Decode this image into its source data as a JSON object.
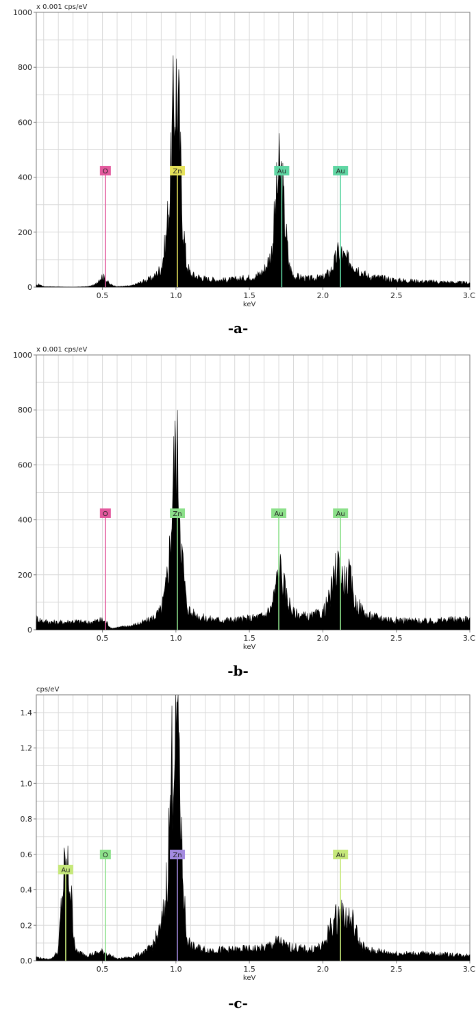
{
  "chart_data": [
    {
      "type": "area",
      "caption": "-a-",
      "y_unit_label": "x 0.001 cps/eV",
      "xlabel": "keV",
      "xlim": [
        0.05,
        3.0
      ],
      "ylim": [
        0,
        1000
      ],
      "x_tick_labels": [
        "0.5",
        "1.0",
        "1.5",
        "2.0",
        "2.5",
        "3.C"
      ],
      "x_ticks": [
        0.5,
        1.0,
        1.5,
        2.0,
        2.5,
        3.0
      ],
      "y_tick_labels": [
        "0",
        "200",
        "400",
        "600",
        "800",
        "1000"
      ],
      "y_ticks": [
        0,
        200,
        400,
        600,
        800,
        1000
      ],
      "spectrum": [
        [
          0.05,
          5
        ],
        [
          0.07,
          10
        ],
        [
          0.1,
          2
        ],
        [
          0.3,
          0
        ],
        [
          0.4,
          2
        ],
        [
          0.45,
          8
        ],
        [
          0.48,
          30
        ],
        [
          0.5,
          40
        ],
        [
          0.52,
          30
        ],
        [
          0.55,
          10
        ],
        [
          0.6,
          2
        ],
        [
          0.7,
          5
        ],
        [
          0.75,
          15
        ],
        [
          0.8,
          25
        ],
        [
          0.85,
          35
        ],
        [
          0.9,
          70
        ],
        [
          0.93,
          160
        ],
        [
          0.96,
          350
        ],
        [
          0.98,
          600
        ],
        [
          1.0,
          740
        ],
        [
          1.02,
          620
        ],
        [
          1.04,
          300
        ],
        [
          1.07,
          90
        ],
        [
          1.1,
          45
        ],
        [
          1.2,
          30
        ],
        [
          1.3,
          25
        ],
        [
          1.4,
          28
        ],
        [
          1.5,
          35
        ],
        [
          1.55,
          40
        ],
        [
          1.6,
          60
        ],
        [
          1.65,
          120
        ],
        [
          1.68,
          300
        ],
        [
          1.7,
          410
        ],
        [
          1.72,
          390
        ],
        [
          1.74,
          250
        ],
        [
          1.77,
          80
        ],
        [
          1.8,
          40
        ],
        [
          1.9,
          30
        ],
        [
          2.0,
          35
        ],
        [
          2.05,
          55
        ],
        [
          2.08,
          90
        ],
        [
          2.1,
          120
        ],
        [
          2.12,
          130
        ],
        [
          2.15,
          100
        ],
        [
          2.2,
          90
        ],
        [
          2.25,
          60
        ],
        [
          2.3,
          40
        ],
        [
          2.5,
          25
        ],
        [
          2.7,
          20
        ],
        [
          3.0,
          15
        ]
      ],
      "markers": [
        {
          "element": "O",
          "energy": 0.52,
          "color": "#e35a9e"
        },
        {
          "element": "Zn",
          "energy": 1.01,
          "color": "#e6e25a"
        },
        {
          "element": "Au",
          "energy": 1.72,
          "color": "#5fd6a3"
        },
        {
          "element": "Au",
          "energy": 2.12,
          "color": "#5fd6a3"
        }
      ]
    },
    {
      "type": "area",
      "caption": "-b-",
      "y_unit_label": "x 0.001 cps/eV",
      "xlabel": "keV",
      "xlim": [
        0.05,
        3.0
      ],
      "ylim": [
        0,
        1000
      ],
      "x_tick_labels": [
        "0.5",
        "1.0",
        "1.5",
        "2.0",
        "2.5",
        "3.C"
      ],
      "x_ticks": [
        0.5,
        1.0,
        1.5,
        2.0,
        2.5,
        3.0
      ],
      "y_tick_labels": [
        "0",
        "200",
        "400",
        "600",
        "800",
        "1000"
      ],
      "y_ticks": [
        0,
        200,
        400,
        600,
        800,
        1000
      ],
      "spectrum": [
        [
          0.05,
          40
        ],
        [
          0.1,
          30
        ],
        [
          0.2,
          25
        ],
        [
          0.3,
          30
        ],
        [
          0.4,
          25
        ],
        [
          0.45,
          30
        ],
        [
          0.5,
          35
        ],
        [
          0.53,
          25
        ],
        [
          0.56,
          5
        ],
        [
          0.6,
          8
        ],
        [
          0.7,
          15
        ],
        [
          0.8,
          30
        ],
        [
          0.85,
          45
        ],
        [
          0.9,
          70
        ],
        [
          0.93,
          140
        ],
        [
          0.96,
          300
        ],
        [
          0.98,
          520
        ],
        [
          1.0,
          650
        ],
        [
          1.02,
          560
        ],
        [
          1.04,
          280
        ],
        [
          1.07,
          100
        ],
        [
          1.1,
          60
        ],
        [
          1.2,
          40
        ],
        [
          1.3,
          35
        ],
        [
          1.4,
          35
        ],
        [
          1.5,
          40
        ],
        [
          1.6,
          50
        ],
        [
          1.65,
          80
        ],
        [
          1.68,
          150
        ],
        [
          1.7,
          230
        ],
        [
          1.72,
          200
        ],
        [
          1.75,
          120
        ],
        [
          1.8,
          60
        ],
        [
          1.9,
          45
        ],
        [
          2.0,
          60
        ],
        [
          2.05,
          120
        ],
        [
          2.08,
          190
        ],
        [
          2.1,
          250
        ],
        [
          2.12,
          200
        ],
        [
          2.15,
          170
        ],
        [
          2.18,
          190
        ],
        [
          2.22,
          100
        ],
        [
          2.3,
          50
        ],
        [
          2.5,
          35
        ],
        [
          2.7,
          30
        ],
        [
          3.0,
          40
        ]
      ],
      "markers": [
        {
          "element": "O",
          "energy": 0.52,
          "color": "#e35a9e"
        },
        {
          "element": "Zn",
          "energy": 1.01,
          "color": "#8ce08a"
        },
        {
          "element": "Au",
          "energy": 1.7,
          "color": "#8ce08a"
        },
        {
          "element": "Au",
          "energy": 2.12,
          "color": "#8ce08a"
        }
      ]
    },
    {
      "type": "area",
      "caption": "-c-",
      "y_unit_label": "cps/eV",
      "xlabel": "keV",
      "xlim": [
        0.05,
        3.0
      ],
      "ylim": [
        0,
        1.5
      ],
      "x_tick_labels": [
        "0.5",
        "1.0",
        "1.5",
        "2.0",
        "2.5",
        "3.C"
      ],
      "x_ticks": [
        0.5,
        1.0,
        1.5,
        2.0,
        2.5,
        3.0
      ],
      "y_tick_labels": [
        "0.0",
        "0.2",
        "0.4",
        "0.6",
        "0.8",
        "1.0",
        "1.2",
        "1.4"
      ],
      "y_ticks": [
        0.0,
        0.2,
        0.4,
        0.6,
        0.8,
        1.0,
        1.2,
        1.4
      ],
      "spectrum": [
        [
          0.05,
          0.02
        ],
        [
          0.1,
          0.01
        ],
        [
          0.15,
          0.01
        ],
        [
          0.2,
          0.05
        ],
        [
          0.22,
          0.3
        ],
        [
          0.24,
          0.48
        ],
        [
          0.26,
          0.5
        ],
        [
          0.28,
          0.45
        ],
        [
          0.3,
          0.2
        ],
        [
          0.32,
          0.05
        ],
        [
          0.4,
          0.03
        ],
        [
          0.5,
          0.05
        ],
        [
          0.55,
          0.03
        ],
        [
          0.6,
          0.01
        ],
        [
          0.7,
          0.02
        ],
        [
          0.8,
          0.05
        ],
        [
          0.85,
          0.1
        ],
        [
          0.9,
          0.18
        ],
        [
          0.93,
          0.35
        ],
        [
          0.96,
          0.8
        ],
        [
          0.98,
          1.25
        ],
        [
          1.0,
          1.37
        ],
        [
          1.02,
          1.25
        ],
        [
          1.04,
          0.6
        ],
        [
          1.07,
          0.15
        ],
        [
          1.1,
          0.08
        ],
        [
          1.2,
          0.06
        ],
        [
          1.4,
          0.06
        ],
        [
          1.6,
          0.07
        ],
        [
          1.7,
          0.11
        ],
        [
          1.75,
          0.08
        ],
        [
          1.9,
          0.06
        ],
        [
          2.0,
          0.08
        ],
        [
          2.05,
          0.18
        ],
        [
          2.1,
          0.25
        ],
        [
          2.15,
          0.25
        ],
        [
          2.2,
          0.22
        ],
        [
          2.25,
          0.1
        ],
        [
          2.3,
          0.06
        ],
        [
          2.5,
          0.04
        ],
        [
          2.7,
          0.04
        ],
        [
          3.0,
          0.03
        ]
      ],
      "markers": [
        {
          "element": "Au",
          "energy": 0.25,
          "color": "#c6e87a"
        },
        {
          "element": "O",
          "energy": 0.52,
          "color": "#8ce08a"
        },
        {
          "element": "Zn",
          "energy": 1.01,
          "color": "#a38ae0"
        },
        {
          "element": "Au",
          "energy": 2.12,
          "color": "#c6e87a"
        }
      ]
    }
  ]
}
